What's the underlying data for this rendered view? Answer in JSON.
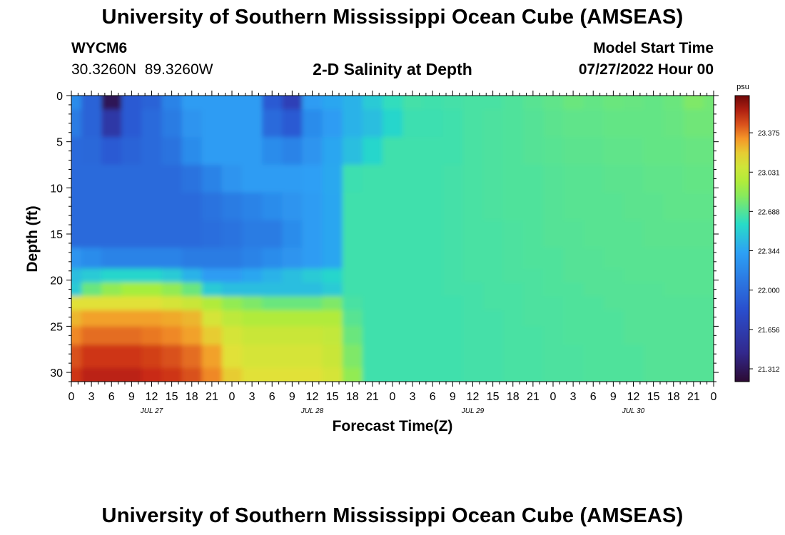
{
  "header": {
    "title": "University of Southern Mississippi Ocean Cube (AMSEAS)",
    "station_id": "WYCM6",
    "coords": "30.3260N  89.3260W",
    "plot_title": "2-D Salinity at Depth",
    "model_label": "Model Start Time",
    "model_time": "07/27/2022 Hour 00"
  },
  "footer": {
    "title": "University of Southern Mississippi Ocean Cube (AMSEAS)"
  },
  "chart_data": {
    "type": "heatmap",
    "title": "2-D Salinity at Depth",
    "xlabel": "Forecast Time(Z)",
    "ylabel": "Depth (ft)",
    "x_unit": "hours from 07/27/2022 00Z",
    "xlim": [
      0,
      96
    ],
    "ylim": [
      31,
      0
    ],
    "x_tick_hours": [
      0,
      3,
      6,
      9,
      12,
      15,
      18,
      21,
      24,
      27,
      30,
      33,
      36,
      39,
      42,
      45,
      48,
      51,
      54,
      57,
      60,
      63,
      66,
      69,
      72,
      75,
      78,
      81,
      84,
      87,
      90,
      93,
      96
    ],
    "x_tick_labels": [
      "0",
      "3",
      "6",
      "9",
      "12",
      "15",
      "18",
      "21",
      "0",
      "3",
      "6",
      "9",
      "12",
      "15",
      "18",
      "21",
      "0",
      "3",
      "6",
      "9",
      "12",
      "15",
      "18",
      "21",
      "0",
      "3",
      "6",
      "9",
      "12",
      "15",
      "18",
      "21",
      "0"
    ],
    "day_labels": [
      {
        "hour": 12,
        "label": "JUL 27"
      },
      {
        "hour": 36,
        "label": "JUL 28"
      },
      {
        "hour": 60,
        "label": "JUL 29"
      },
      {
        "hour": 84,
        "label": "JUL 30"
      }
    ],
    "y_ticks": [
      0,
      5,
      10,
      15,
      20,
      25,
      30
    ],
    "y_tick_labels": [
      "0",
      "5",
      "10",
      "15",
      "20",
      "25",
      "30"
    ],
    "colorbar": {
      "unit": "psu",
      "range": [
        21.2,
        23.7
      ],
      "ticks": [
        21.312,
        21.656,
        22.0,
        22.344,
        22.688,
        23.031,
        23.375
      ],
      "tick_labels": [
        "21.312",
        "21.656",
        "22.000",
        "22.344",
        "22.688",
        "23.031",
        "23.375"
      ]
    },
    "grid_hours": [
      0,
      3,
      6,
      9,
      12,
      15,
      18,
      21,
      24,
      27,
      30,
      33,
      36,
      39,
      42,
      45,
      48,
      51,
      54,
      57,
      60,
      63,
      66,
      69,
      72,
      75,
      78,
      81,
      84,
      87,
      90,
      93,
      96
    ],
    "grid_depths_ft": [
      0,
      3,
      6,
      9,
      12,
      15,
      18,
      19.5,
      21,
      22.5,
      24,
      26,
      28,
      31
    ],
    "salinity_psu": [
      [
        22.2,
        21.95,
        21.3,
        21.9,
        21.95,
        22.15,
        22.3,
        22.3,
        22.3,
        22.3,
        21.9,
        21.7,
        22.3,
        22.35,
        22.4,
        22.5,
        22.6,
        22.65,
        22.64,
        22.65,
        22.66,
        22.66,
        22.68,
        22.7,
        22.72,
        22.75,
        22.73,
        22.75,
        22.74,
        22.73,
        22.75,
        22.8,
        22.77
      ],
      [
        22.1,
        21.95,
        21.6,
        21.9,
        22.0,
        22.1,
        22.25,
        22.3,
        22.3,
        22.3,
        22.0,
        21.9,
        22.2,
        22.3,
        22.4,
        22.45,
        22.55,
        22.63,
        22.63,
        22.64,
        22.66,
        22.67,
        22.68,
        22.69,
        22.71,
        22.72,
        22.72,
        22.73,
        22.73,
        22.73,
        22.74,
        22.76,
        22.76
      ],
      [
        22.0,
        21.98,
        21.9,
        21.95,
        22.0,
        22.05,
        22.2,
        22.3,
        22.3,
        22.3,
        22.2,
        22.15,
        22.25,
        22.35,
        22.45,
        22.55,
        22.64,
        22.64,
        22.64,
        22.64,
        22.66,
        22.67,
        22.68,
        22.69,
        22.7,
        22.71,
        22.71,
        22.72,
        22.72,
        22.73,
        22.73,
        22.74,
        22.74
      ],
      [
        22.0,
        22.0,
        22.0,
        22.0,
        22.0,
        22.0,
        22.05,
        22.15,
        22.25,
        22.3,
        22.3,
        22.3,
        22.32,
        22.36,
        22.63,
        22.64,
        22.64,
        22.64,
        22.64,
        22.65,
        22.66,
        22.67,
        22.68,
        22.68,
        22.69,
        22.7,
        22.7,
        22.71,
        22.71,
        22.72,
        22.72,
        22.73,
        22.73
      ],
      [
        22.0,
        22.0,
        22.0,
        22.0,
        22.0,
        22.0,
        22.0,
        22.05,
        22.1,
        22.15,
        22.2,
        22.25,
        22.3,
        22.35,
        22.64,
        22.64,
        22.64,
        22.64,
        22.64,
        22.65,
        22.66,
        22.67,
        22.68,
        22.68,
        22.69,
        22.7,
        22.7,
        22.7,
        22.71,
        22.71,
        22.72,
        22.72,
        22.72
      ],
      [
        22.0,
        22.0,
        22.0,
        22.0,
        22.0,
        22.0,
        22.0,
        22.02,
        22.05,
        22.1,
        22.1,
        22.2,
        22.3,
        22.35,
        22.64,
        22.64,
        22.64,
        22.64,
        22.64,
        22.65,
        22.66,
        22.66,
        22.67,
        22.68,
        22.69,
        22.69,
        22.7,
        22.7,
        22.7,
        22.71,
        22.71,
        22.71,
        22.71
      ],
      [
        22.25,
        22.2,
        22.15,
        22.15,
        22.15,
        22.15,
        22.1,
        22.1,
        22.1,
        22.15,
        22.2,
        22.25,
        22.3,
        22.35,
        22.64,
        22.64,
        22.64,
        22.64,
        22.64,
        22.65,
        22.66,
        22.66,
        22.67,
        22.68,
        22.68,
        22.69,
        22.69,
        22.7,
        22.7,
        22.7,
        22.7,
        22.7,
        22.7
      ],
      [
        22.45,
        22.5,
        22.55,
        22.55,
        22.55,
        22.5,
        22.4,
        22.3,
        22.3,
        22.35,
        22.4,
        22.45,
        22.5,
        22.55,
        22.64,
        22.64,
        22.64,
        22.64,
        22.64,
        22.65,
        22.66,
        22.66,
        22.67,
        22.67,
        22.68,
        22.69,
        22.69,
        22.69,
        22.7,
        22.7,
        22.7,
        22.7,
        22.7
      ],
      [
        22.5,
        22.75,
        22.85,
        22.9,
        22.9,
        22.85,
        22.75,
        22.5,
        22.45,
        22.45,
        22.45,
        22.45,
        22.45,
        22.5,
        22.64,
        22.64,
        22.64,
        22.64,
        22.64,
        22.65,
        22.65,
        22.66,
        22.66,
        22.67,
        22.68,
        22.68,
        22.69,
        22.69,
        22.69,
        22.69,
        22.7,
        22.7,
        22.7
      ],
      [
        23.15,
        23.15,
        23.15,
        23.15,
        23.15,
        23.1,
        23.05,
        22.95,
        22.85,
        22.8,
        22.75,
        22.75,
        22.75,
        22.8,
        22.66,
        22.64,
        22.64,
        22.64,
        22.64,
        22.64,
        22.65,
        22.66,
        22.66,
        22.67,
        22.67,
        22.68,
        22.68,
        22.69,
        22.69,
        22.69,
        22.69,
        22.69,
        22.69
      ],
      [
        23.25,
        23.3,
        23.3,
        23.3,
        23.3,
        23.28,
        23.25,
        23.1,
        23.0,
        22.95,
        22.95,
        22.95,
        22.95,
        22.95,
        22.7,
        22.64,
        22.64,
        22.64,
        22.64,
        22.64,
        22.65,
        22.65,
        22.66,
        22.67,
        22.67,
        22.68,
        22.68,
        22.68,
        22.69,
        22.69,
        22.69,
        22.69,
        22.69
      ],
      [
        23.35,
        23.4,
        23.4,
        23.4,
        23.38,
        23.35,
        23.3,
        23.2,
        23.1,
        23.05,
        23.05,
        23.05,
        23.05,
        23.02,
        22.75,
        22.64,
        22.64,
        22.64,
        22.64,
        22.64,
        22.65,
        22.65,
        22.66,
        22.66,
        22.67,
        22.68,
        22.68,
        22.68,
        22.69,
        22.69,
        22.69,
        22.69,
        22.69
      ],
      [
        23.45,
        23.5,
        23.5,
        23.5,
        23.48,
        23.45,
        23.4,
        23.3,
        23.15,
        23.1,
        23.1,
        23.1,
        23.1,
        23.05,
        22.8,
        22.64,
        22.64,
        22.64,
        22.64,
        22.64,
        22.65,
        22.65,
        22.66,
        22.66,
        22.67,
        22.67,
        22.68,
        22.68,
        22.68,
        22.69,
        22.69,
        22.69,
        22.69
      ],
      [
        23.5,
        23.55,
        23.55,
        23.55,
        23.52,
        23.5,
        23.45,
        23.35,
        23.2,
        23.15,
        23.15,
        23.15,
        23.15,
        23.1,
        22.85,
        22.64,
        22.64,
        22.64,
        22.64,
        22.64,
        22.65,
        22.65,
        22.66,
        22.66,
        22.67,
        22.67,
        22.68,
        22.68,
        22.68,
        22.69,
        22.69,
        22.69,
        22.69
      ]
    ]
  }
}
